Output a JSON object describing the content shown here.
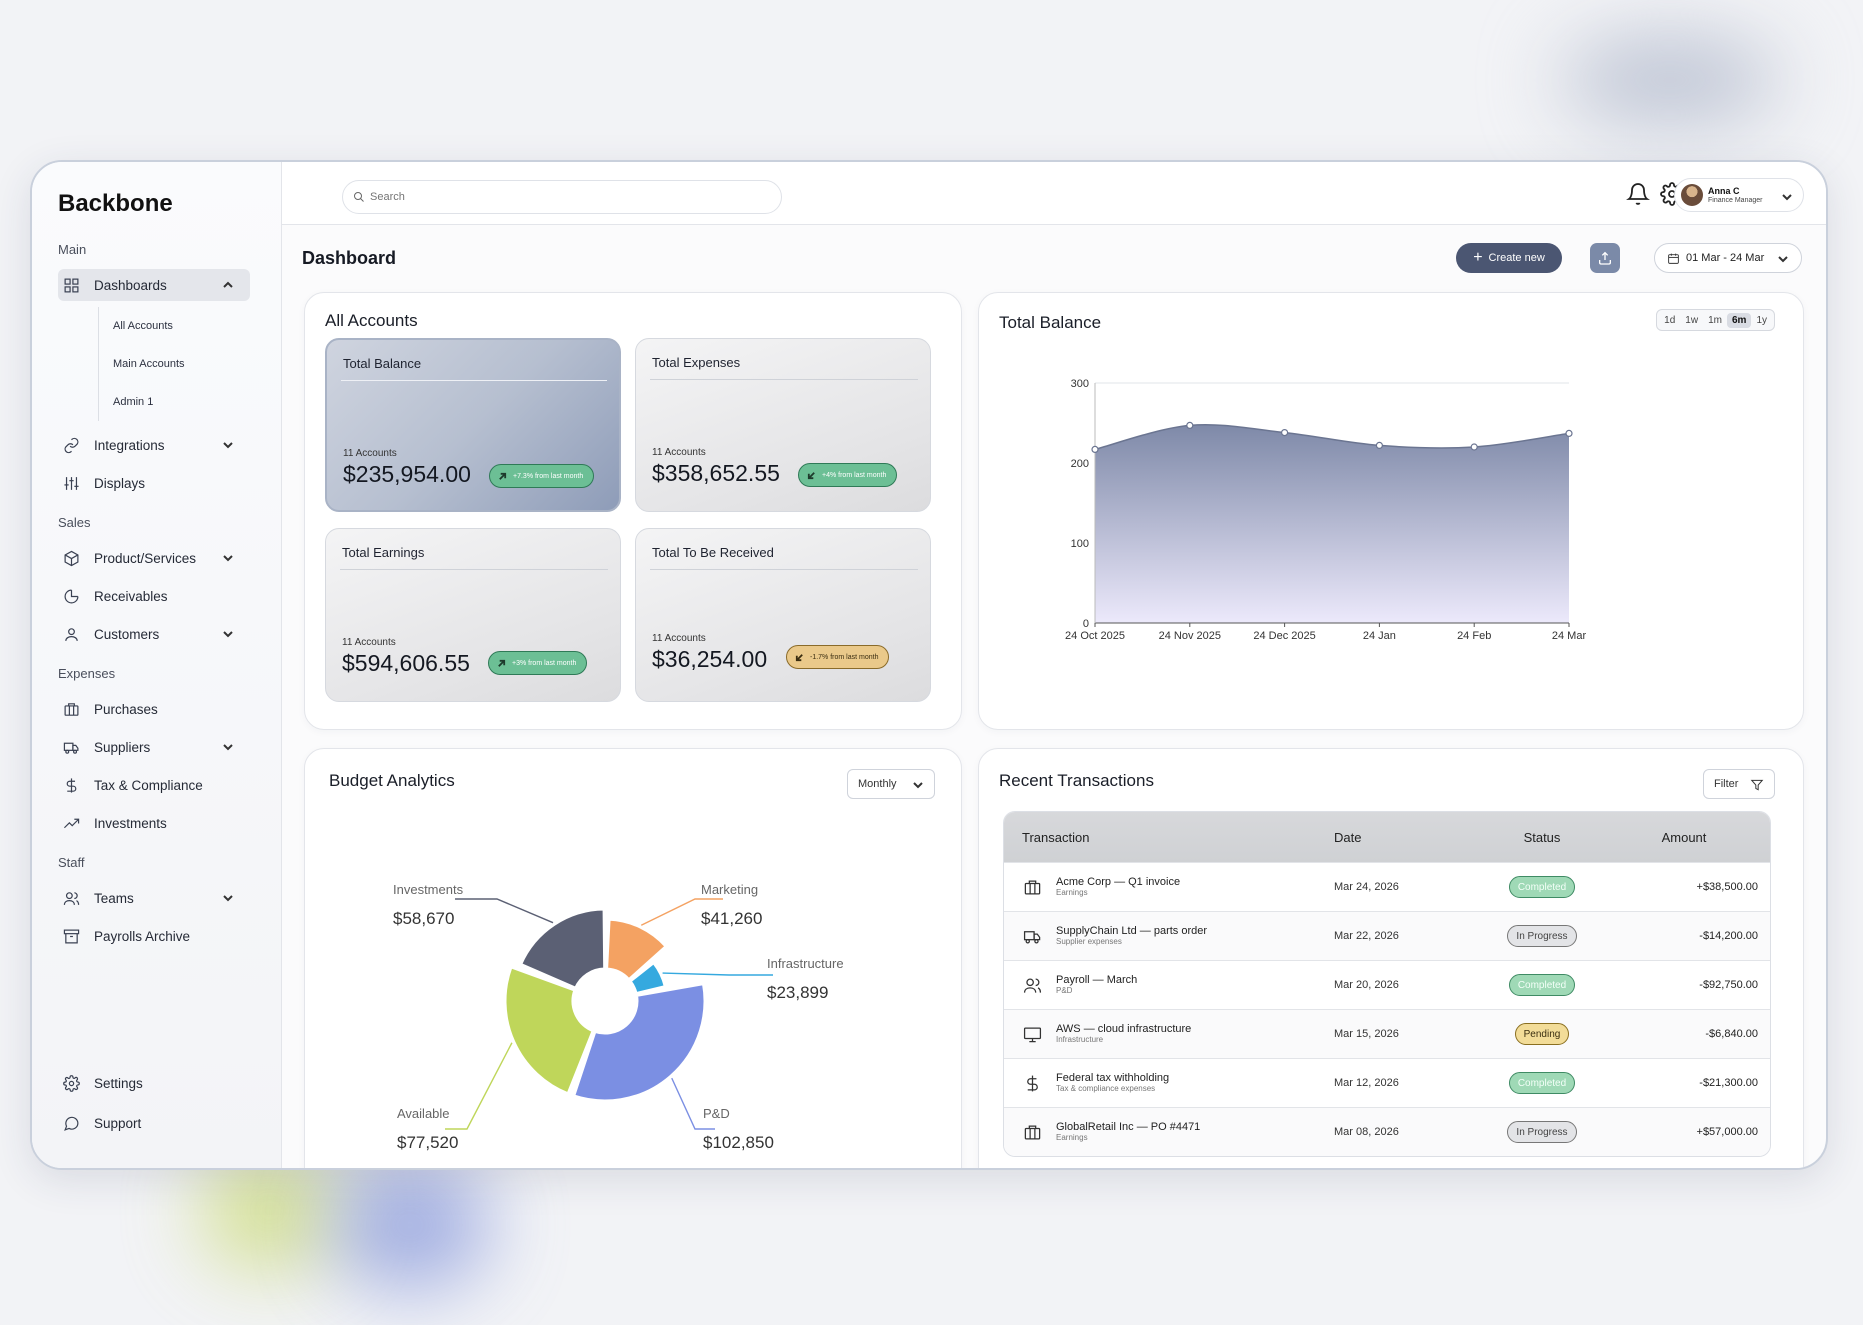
{
  "app": {
    "brand": "Backbone"
  },
  "sidebar": {
    "sections": [
      {
        "label": "Main"
      },
      {
        "label": "Sales"
      },
      {
        "label": "Expenses"
      },
      {
        "label": "Staff"
      }
    ],
    "items": [
      {
        "label": "Dashboards",
        "icon": "grid-icon",
        "active": true,
        "expanded": true
      },
      {
        "label": "Integrations",
        "icon": "link-icon"
      },
      {
        "label": "Displays",
        "icon": "sliders-icon"
      },
      {
        "label": "Product/Services",
        "icon": "box-icon"
      },
      {
        "label": "Receivables",
        "icon": "pie-chart-icon"
      },
      {
        "label": "Customers",
        "icon": "user-icon"
      },
      {
        "label": "Purchases",
        "icon": "briefcase-icon"
      },
      {
        "label": "Suppliers",
        "icon": "truck-icon"
      },
      {
        "label": "Tax & Compliance",
        "icon": "dollar-icon"
      },
      {
        "label": "Investments",
        "icon": "trending-up-icon"
      },
      {
        "label": "Teams",
        "icon": "users-icon"
      },
      {
        "label": "Payrolls Archive",
        "icon": "archive-icon"
      }
    ],
    "sub_items": [
      "All Accounts",
      "Main Accounts",
      "Admin 1"
    ],
    "bottom": [
      {
        "label": "Settings",
        "icon": "gear-icon"
      },
      {
        "label": "Support",
        "icon": "chat-icon"
      }
    ]
  },
  "topbar": {
    "search_placeholder": "Search",
    "user": {
      "name": "Anna C",
      "role": "Finance Manager"
    }
  },
  "header": {
    "title": "Dashboard",
    "create_label": "Create new",
    "date_range": "01 Mar - 24 Mar"
  },
  "accounts": {
    "title": "All Accounts",
    "cards": [
      {
        "title": "Total Balance",
        "count": "11 Accounts",
        "amount": "$235,954.00",
        "badge": "+7.3% from last month",
        "trend": "up",
        "color": "green"
      },
      {
        "title": "Total Expenses",
        "count": "11 Accounts",
        "amount": "$358,652.55",
        "badge": "+4% from last month",
        "trend": "down",
        "color": "green"
      },
      {
        "title": "Total Earnings",
        "count": "11 Accounts",
        "amount": "$594,606.55",
        "badge": "+3% from last month",
        "trend": "up",
        "color": "green"
      },
      {
        "title": "Total To Be Received",
        "count": "11 Accounts",
        "amount": "$36,254.00",
        "badge": "-1.7% from last month",
        "trend": "down",
        "color": "yellow"
      }
    ]
  },
  "balance": {
    "title": "Total Balance",
    "ranges": [
      "1d",
      "1w",
      "1m",
      "6m",
      "1y"
    ],
    "active_range": "6m"
  },
  "budget": {
    "title": "Budget Analytics",
    "period": "Monthly"
  },
  "transactions": {
    "title": "Recent Transactions",
    "filter_label": "Filter",
    "columns": [
      "Transaction",
      "Date",
      "Status",
      "Amount"
    ],
    "rows": [
      {
        "name": "Acme Corp — Q1 invoice",
        "category": "Earnings",
        "icon": "briefcase-icon",
        "date": "Mar 24, 2026",
        "status": "Completed",
        "status_type": "completed",
        "amount": "+$38,500.00"
      },
      {
        "name": "SupplyChain Ltd — parts order",
        "category": "Supplier expenses",
        "icon": "truck-icon",
        "date": "Mar 22, 2026",
        "status": "In Progress",
        "status_type": "progress",
        "amount": "-$14,200.00"
      },
      {
        "name": "Payroll — March",
        "category": "P&D",
        "icon": "users-icon",
        "date": "Mar 20, 2026",
        "status": "Completed",
        "status_type": "completed",
        "amount": "-$92,750.00"
      },
      {
        "name": "AWS — cloud infrastructure",
        "category": "Infrastructure",
        "icon": "monitor-icon",
        "date": "Mar 15, 2026",
        "status": "Pending",
        "status_type": "pending",
        "amount": "-$6,840.00"
      },
      {
        "name": "Federal tax withholding",
        "category": "Tax & compliance expenses",
        "icon": "dollar-icon",
        "date": "Mar 12, 2026",
        "status": "Completed",
        "status_type": "completed",
        "amount": "-$21,300.00"
      },
      {
        "name": "GlobalRetail Inc — PO #4471",
        "category": "Earnings",
        "icon": "briefcase-icon",
        "date": "Mar 08, 2026",
        "status": "In Progress",
        "status_type": "progress",
        "amount": "+$57,000.00"
      }
    ]
  },
  "chart_data": [
    {
      "type": "area",
      "title": "Total Balance",
      "x": [
        "24 Oct 2025",
        "24 Nov 2025",
        "24 Dec 2025",
        "24 Jan",
        "24 Feb",
        "24 Mar"
      ],
      "values": [
        217,
        247,
        238,
        222,
        220,
        237
      ],
      "ylim": [
        0,
        300
      ],
      "yticks": [
        0,
        100,
        200,
        300
      ],
      "grid": true,
      "colors": {
        "line": "#6b7591",
        "fill_top": "#7e89a8",
        "fill_bottom": "#ece9fb"
      }
    },
    {
      "type": "pie",
      "title": "Budget Analytics",
      "categories": [
        "Investments",
        "Marketing",
        "Infrastructure",
        "P&D",
        "Available"
      ],
      "values": [
        58670,
        41260,
        23899,
        102850,
        77520
      ],
      "labels": [
        "$58,670",
        "$41,260",
        "$23,899",
        "$102,850",
        "$77,520"
      ],
      "colors": [
        "#5b6074",
        "#f4a262",
        "#35a9df",
        "#7b8fe3",
        "#bfd65a"
      ]
    }
  ]
}
